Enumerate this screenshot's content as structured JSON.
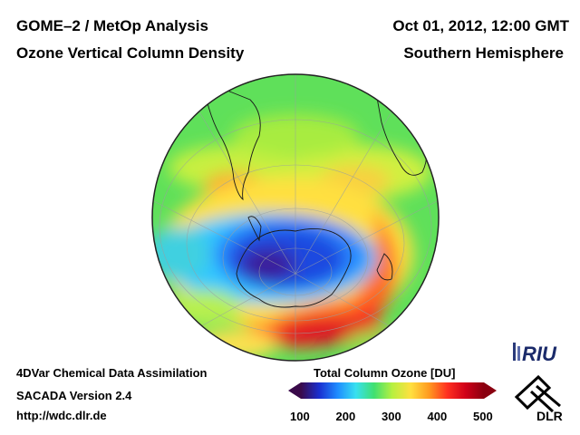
{
  "header": {
    "title_left": "GOME–2 / MetOp Analysis",
    "subtitle_left": "Ozone Vertical Column Density",
    "date": "Oct 01, 2012, 12:00 GMT",
    "region": "Southern Hemisphere"
  },
  "footer": {
    "line1": "4DVar Chemical Data Assimilation",
    "line2": "SACADA Version 2.4",
    "line3": "http://wdc.dlr.de"
  },
  "legend": {
    "title": "Total Column Ozone [DU]",
    "ticks": [
      "100",
      "200",
      "300",
      "400",
      "500"
    ],
    "colors": [
      "#3a0a4a",
      "#1a2fd0",
      "#1f8cff",
      "#38e0f0",
      "#40e070",
      "#b8f040",
      "#ffe040",
      "#ff9a20",
      "#ff3020",
      "#d00018",
      "#8a0010"
    ]
  },
  "logos": {
    "riu": "RIU",
    "dlr": "DLR"
  }
}
